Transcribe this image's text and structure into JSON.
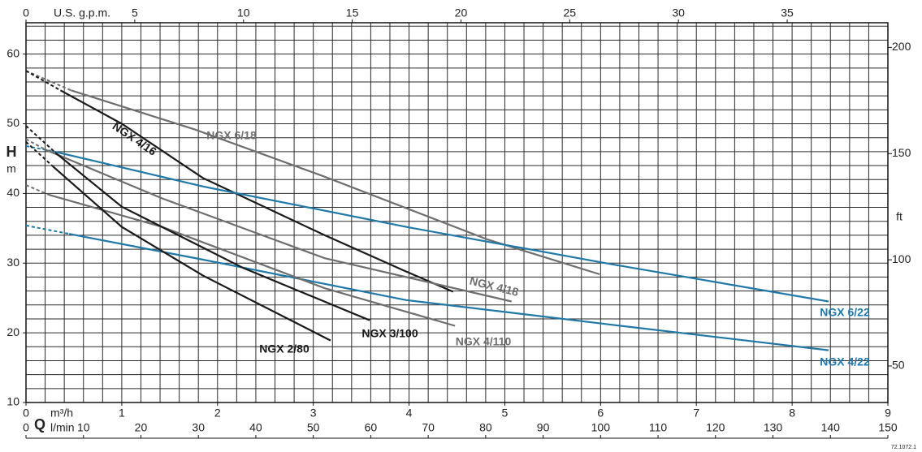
{
  "chart_data": {
    "type": "line",
    "y_label": "H",
    "y_unit": "m",
    "x_label": "Q",
    "x_unit": "m³/h",
    "xlim": [
      0,
      9
    ],
    "xticks": [
      0,
      1,
      2,
      3,
      4,
      5,
      6,
      7,
      8,
      9
    ],
    "ylim": [
      10,
      64.5
    ],
    "yticks": [
      10,
      20,
      30,
      40,
      50,
      60
    ],
    "grid": {
      "x_step": 0.2,
      "y_step": 2
    },
    "x_lpm": {
      "label": "l/min",
      "lim": [
        0,
        150
      ],
      "ticks": [
        0,
        10,
        20,
        30,
        40,
        50,
        60,
        70,
        80,
        90,
        100,
        110,
        120,
        130,
        140,
        150
      ]
    },
    "x_gpm": {
      "label": "U.S. g.p.m.",
      "lim": [
        0,
        39.63
      ],
      "ticks": [
        0,
        5,
        10,
        15,
        20,
        25,
        30,
        35
      ]
    },
    "y2_label": "ft",
    "y2lim": [
      32.81,
      211.61
    ],
    "y2ticks": [
      50,
      100,
      150,
      200
    ],
    "footnote": "72.1072.1",
    "series": [
      {
        "name": "NGX 6/18",
        "color": "#6e6e6e",
        "x": [
          0,
          0.47,
          1.76,
          3.12,
          4.82,
          5.99
        ],
        "values": [
          57.6,
          54.8,
          49.2,
          42.4,
          33.4,
          28.4
        ]
      },
      {
        "name": "NGX 4/16",
        "color": "#1a1a1a",
        "x": [
          0,
          0.36,
          1.0,
          1.85,
          3.12,
          3.97,
          4.46
        ],
        "values": [
          57.6,
          54.8,
          50.0,
          42.2,
          34.0,
          28.8,
          25.9
        ]
      },
      {
        "name": "NGX 6/22",
        "color": "#1f78a8",
        "x": [
          0,
          0.3,
          1.85,
          3.97,
          6.09,
          8.38
        ],
        "values": [
          46.8,
          46.0,
          41.0,
          35.2,
          29.9,
          24.5
        ]
      },
      {
        "name": "NGX 4/22",
        "color": "#1f78a8",
        "x": [
          0,
          0.45,
          1.85,
          3.97,
          6.09,
          8.38
        ],
        "values": [
          35.4,
          34.2,
          30.5,
          24.7,
          21.2,
          17.5
        ]
      },
      {
        "name": "NGX 4/18",
        "color": "#6e6e6e",
        "x": [
          0,
          0.2,
          1.42,
          3.12,
          5.07
        ],
        "values": [
          47.8,
          46.3,
          39.3,
          30.7,
          24.5
        ]
      },
      {
        "name": "NGX 4/110",
        "color": "#6e6e6e",
        "x": [
          0,
          0.24,
          1.42,
          3.12,
          4.48
        ],
        "values": [
          41.2,
          39.8,
          35.2,
          26.4,
          21.0
        ]
      },
      {
        "name": "NGX 3/100",
        "color": "#1a1a1a",
        "x": [
          0,
          0.32,
          1.0,
          2.27,
          3.59
        ],
        "values": [
          49.7,
          45.7,
          38.1,
          29.3,
          21.8
        ]
      },
      {
        "name": "NGX 2/80",
        "color": "#1a1a1a",
        "x": [
          0,
          0.28,
          1.0,
          1.85,
          3.18
        ],
        "values": [
          47.4,
          43.9,
          35.2,
          28.2,
          18.9
        ]
      }
    ]
  }
}
